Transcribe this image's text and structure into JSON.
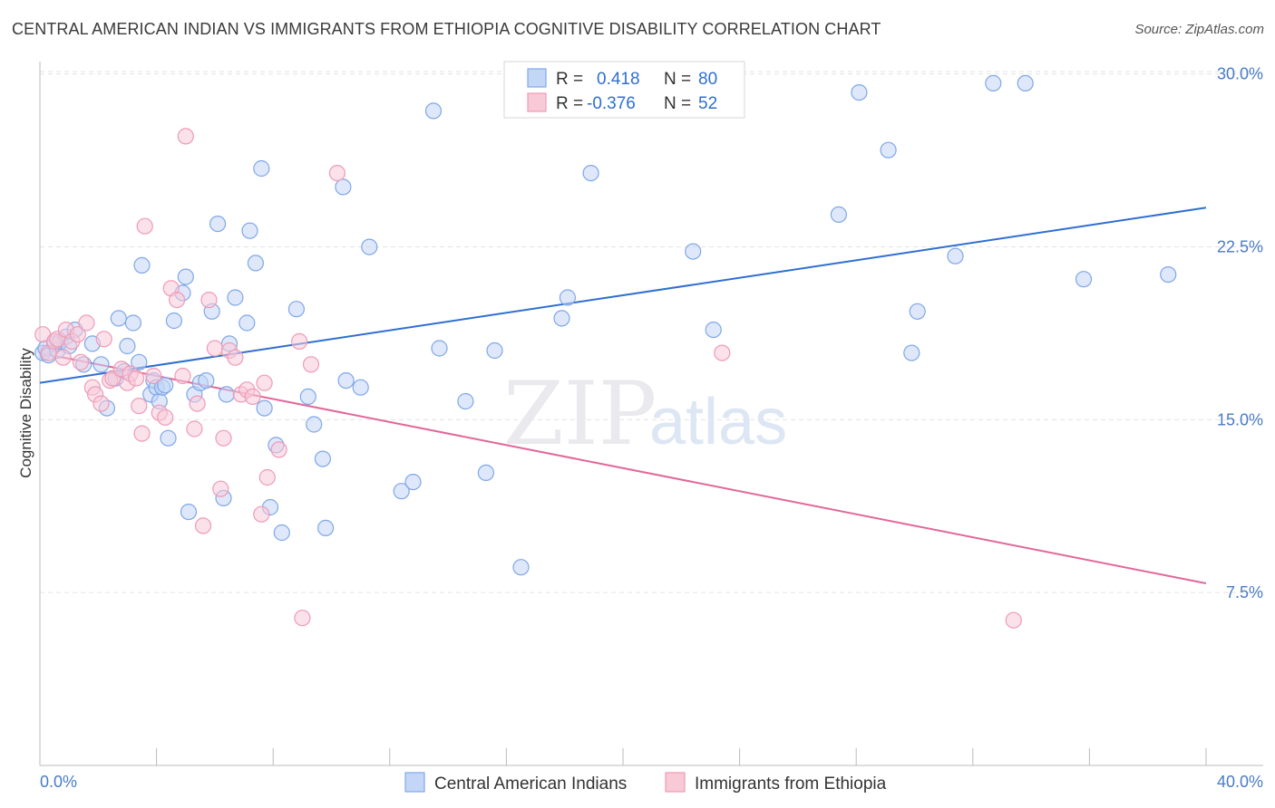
{
  "header": {
    "title": "CENTRAL AMERICAN INDIAN VS IMMIGRANTS FROM ETHIOPIA COGNITIVE DISABILITY CORRELATION CHART",
    "source": "Source: ZipAtlas.com"
  },
  "watermark": {
    "zip": "ZIP",
    "atlas": "atlas"
  },
  "chart_data": {
    "type": "scatter",
    "title": "CENTRAL AMERICAN INDIAN VS IMMIGRANTS FROM ETHIOPIA COGNITIVE DISABILITY CORRELATION CHART",
    "ylabel": "Cognitive Disability",
    "xlabel": "",
    "xlim": [
      0,
      40
    ],
    "ylim": [
      0,
      31.5
    ],
    "x_ticks": [
      0,
      4,
      8,
      12,
      16,
      20,
      24,
      28,
      32,
      36,
      40
    ],
    "x_tick_labels": {
      "start": "0.0%",
      "end": "40.0%"
    },
    "y_ticks": [
      {
        "value": 7.5,
        "label": "7.5%"
      },
      {
        "value": 15.0,
        "label": "15.0%"
      },
      {
        "value": 22.5,
        "label": "22.5%"
      },
      {
        "value": 30.0,
        "label": "30.0%"
      }
    ],
    "grid": true,
    "legend": {
      "position": "top-center",
      "entries": [
        {
          "r_label": "R =",
          "r_value": "0.418",
          "n_label": "N =",
          "n_value": "80"
        },
        {
          "r_label": "R =",
          "r_value": "-0.376",
          "n_label": "N =",
          "n_value": "52"
        }
      ]
    },
    "series": [
      {
        "name": "Central American Indians",
        "color": "#7fa7e8",
        "fill": "#c3d6f5",
        "line_color": "#2f6fd0",
        "trend": {
          "x": [
            0,
            40
          ],
          "y": [
            16.6,
            24.2
          ]
        },
        "points": [
          [
            0.1,
            17.9
          ],
          [
            0.2,
            18.1
          ],
          [
            0.3,
            17.8
          ],
          [
            0.5,
            18.3
          ],
          [
            0.6,
            18.0
          ],
          [
            0.7,
            18.4
          ],
          [
            0.9,
            18.6
          ],
          [
            1.0,
            18.2
          ],
          [
            1.2,
            18.9
          ],
          [
            1.5,
            17.4
          ],
          [
            1.8,
            18.3
          ],
          [
            2.1,
            17.4
          ],
          [
            2.3,
            15.5
          ],
          [
            2.6,
            16.8
          ],
          [
            2.7,
            19.4
          ],
          [
            2.9,
            17.1
          ],
          [
            3.0,
            18.2
          ],
          [
            3.2,
            19.2
          ],
          [
            3.4,
            17.5
          ],
          [
            3.5,
            21.7
          ],
          [
            3.8,
            16.1
          ],
          [
            3.9,
            16.7
          ],
          [
            4.0,
            16.4
          ],
          [
            4.1,
            15.8
          ],
          [
            4.2,
            16.4
          ],
          [
            4.3,
            16.5
          ],
          [
            4.4,
            14.2
          ],
          [
            4.6,
            19.3
          ],
          [
            4.9,
            20.5
          ],
          [
            5.0,
            21.2
          ],
          [
            5.1,
            11.0
          ],
          [
            5.3,
            16.1
          ],
          [
            5.5,
            16.6
          ],
          [
            5.7,
            16.7
          ],
          [
            5.9,
            19.7
          ],
          [
            6.1,
            23.5
          ],
          [
            6.3,
            11.6
          ],
          [
            6.4,
            16.1
          ],
          [
            6.5,
            18.3
          ],
          [
            6.7,
            20.3
          ],
          [
            7.1,
            19.2
          ],
          [
            7.2,
            23.2
          ],
          [
            7.4,
            21.8
          ],
          [
            7.6,
            25.9
          ],
          [
            7.7,
            15.5
          ],
          [
            7.9,
            11.2
          ],
          [
            8.1,
            13.9
          ],
          [
            8.3,
            10.1
          ],
          [
            8.8,
            19.8
          ],
          [
            9.2,
            16.0
          ],
          [
            9.4,
            14.8
          ],
          [
            9.7,
            13.3
          ],
          [
            9.8,
            10.3
          ],
          [
            10.4,
            25.1
          ],
          [
            10.5,
            16.7
          ],
          [
            11.0,
            16.4
          ],
          [
            11.3,
            22.5
          ],
          [
            12.4,
            11.9
          ],
          [
            12.8,
            12.3
          ],
          [
            13.5,
            28.4
          ],
          [
            13.7,
            18.1
          ],
          [
            14.6,
            15.8
          ],
          [
            15.3,
            12.7
          ],
          [
            15.6,
            18.0
          ],
          [
            16.5,
            8.6
          ],
          [
            17.9,
            19.4
          ],
          [
            18.1,
            20.3
          ],
          [
            18.9,
            25.7
          ],
          [
            22.4,
            22.3
          ],
          [
            23.1,
            18.9
          ],
          [
            27.4,
            23.9
          ],
          [
            28.1,
            29.2
          ],
          [
            29.1,
            26.7
          ],
          [
            29.9,
            17.9
          ],
          [
            30.1,
            19.7
          ],
          [
            31.4,
            22.1
          ],
          [
            32.7,
            29.6
          ],
          [
            33.8,
            29.6
          ],
          [
            35.8,
            21.1
          ],
          [
            38.7,
            21.3
          ]
        ]
      },
      {
        "name": "Immigrants from Ethiopia",
        "color": "#ef9ab5",
        "fill": "#f8cad8",
        "line_color": "#e2679a",
        "trend": {
          "x": [
            0,
            40
          ],
          "y": [
            17.9,
            7.9
          ]
        },
        "points": [
          [
            0.1,
            18.7
          ],
          [
            0.3,
            17.9
          ],
          [
            0.5,
            18.4
          ],
          [
            0.6,
            18.5
          ],
          [
            0.8,
            17.7
          ],
          [
            0.9,
            18.9
          ],
          [
            1.1,
            18.4
          ],
          [
            1.3,
            18.7
          ],
          [
            1.4,
            17.5
          ],
          [
            1.6,
            19.2
          ],
          [
            1.8,
            16.4
          ],
          [
            1.9,
            16.1
          ],
          [
            2.1,
            15.7
          ],
          [
            2.2,
            18.5
          ],
          [
            2.4,
            16.7
          ],
          [
            2.5,
            16.8
          ],
          [
            2.8,
            17.2
          ],
          [
            3.0,
            16.6
          ],
          [
            3.1,
            17.0
          ],
          [
            3.3,
            16.8
          ],
          [
            3.4,
            15.6
          ],
          [
            3.5,
            14.4
          ],
          [
            3.6,
            23.4
          ],
          [
            3.9,
            16.9
          ],
          [
            4.1,
            15.3
          ],
          [
            4.3,
            15.1
          ],
          [
            4.5,
            20.7
          ],
          [
            4.7,
            20.2
          ],
          [
            4.9,
            16.9
          ],
          [
            5.0,
            27.3
          ],
          [
            5.3,
            14.6
          ],
          [
            5.4,
            15.7
          ],
          [
            5.6,
            10.4
          ],
          [
            5.8,
            20.2
          ],
          [
            6.0,
            18.1
          ],
          [
            6.2,
            12.0
          ],
          [
            6.3,
            14.2
          ],
          [
            6.5,
            18.0
          ],
          [
            6.7,
            17.7
          ],
          [
            6.9,
            16.1
          ],
          [
            7.1,
            16.3
          ],
          [
            7.3,
            16.0
          ],
          [
            7.6,
            10.9
          ],
          [
            7.7,
            16.6
          ],
          [
            7.8,
            12.5
          ],
          [
            8.2,
            13.7
          ],
          [
            8.9,
            18.4
          ],
          [
            9.0,
            6.4
          ],
          [
            9.3,
            17.4
          ],
          [
            10.2,
            25.7
          ],
          [
            23.4,
            17.9
          ],
          [
            33.4,
            6.3
          ]
        ]
      }
    ]
  },
  "bottom_legend": [
    {
      "label": "Central American Indians"
    },
    {
      "label": "Immigrants from Ethiopia"
    }
  ]
}
